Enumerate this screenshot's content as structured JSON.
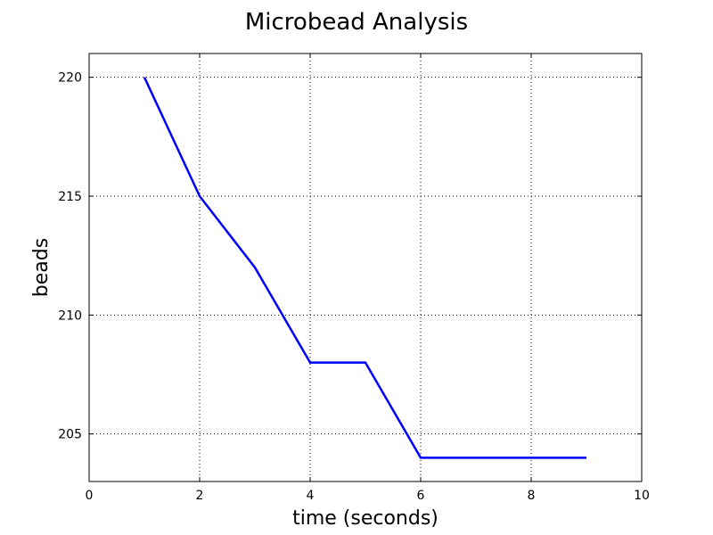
{
  "chart_data": {
    "type": "line",
    "title": "Microbead Analysis",
    "xlabel": "time (seconds)",
    "ylabel": "beads",
    "xlim": [
      0,
      10
    ],
    "ylim": [
      203,
      221
    ],
    "xticks": [
      0,
      2,
      4,
      6,
      8,
      10
    ],
    "yticks": [
      205,
      210,
      215,
      220
    ],
    "grid": true,
    "series": [
      {
        "x": [
          1,
          2,
          3,
          4,
          5,
          6,
          7,
          8,
          9
        ],
        "y": [
          220,
          215,
          212,
          208,
          208,
          204,
          204,
          204,
          204
        ],
        "color": "#0000ff"
      }
    ]
  }
}
